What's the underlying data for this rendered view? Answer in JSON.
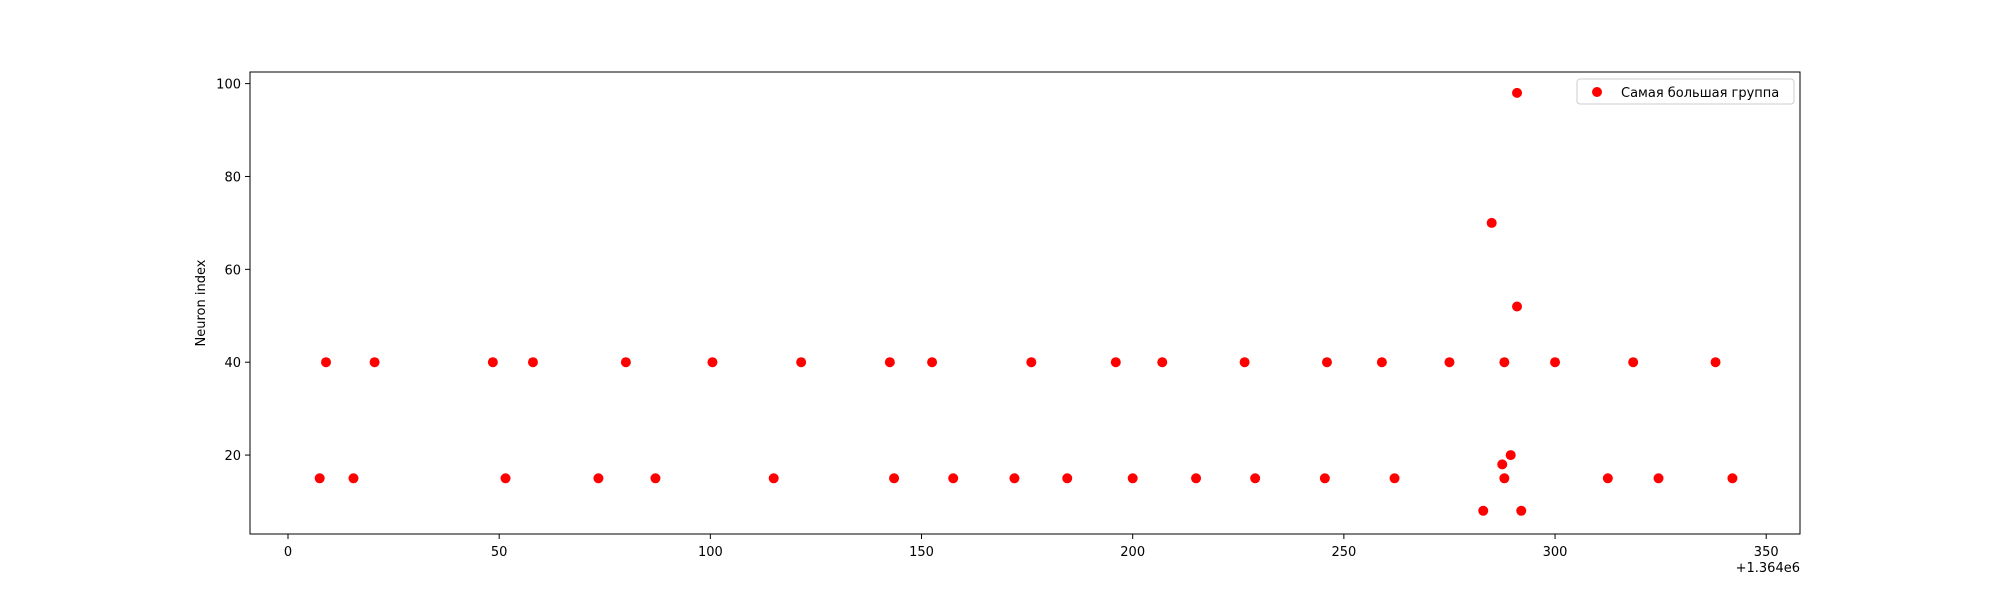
{
  "chart_data": {
    "type": "scatter",
    "title": "",
    "xlabel": "",
    "ylabel": "Neuron index",
    "x_offset_label": "+1.364e6",
    "xlim": [
      -9,
      358
    ],
    "ylim": [
      3,
      102.5
    ],
    "x_ticks": [
      0,
      50,
      100,
      150,
      200,
      250,
      300,
      350
    ],
    "y_ticks": [
      20,
      40,
      60,
      80,
      100
    ],
    "grid": false,
    "legend_position": "top-right",
    "series": [
      {
        "name": "Самая большая группа",
        "color": "#ff0000",
        "points": [
          {
            "x": 7.5,
            "y": 15
          },
          {
            "x": 9,
            "y": 40
          },
          {
            "x": 15.5,
            "y": 15
          },
          {
            "x": 20.5,
            "y": 40
          },
          {
            "x": 48.5,
            "y": 40
          },
          {
            "x": 51.5,
            "y": 15
          },
          {
            "x": 58,
            "y": 40
          },
          {
            "x": 73.5,
            "y": 15
          },
          {
            "x": 80,
            "y": 40
          },
          {
            "x": 87,
            "y": 15
          },
          {
            "x": 100.5,
            "y": 40
          },
          {
            "x": 115,
            "y": 15
          },
          {
            "x": 121.5,
            "y": 40
          },
          {
            "x": 142.5,
            "y": 40
          },
          {
            "x": 143.5,
            "y": 15
          },
          {
            "x": 152.5,
            "y": 40
          },
          {
            "x": 157.5,
            "y": 15
          },
          {
            "x": 172,
            "y": 15
          },
          {
            "x": 176,
            "y": 40
          },
          {
            "x": 184.5,
            "y": 15
          },
          {
            "x": 196,
            "y": 40
          },
          {
            "x": 200,
            "y": 15
          },
          {
            "x": 207,
            "y": 40
          },
          {
            "x": 215,
            "y": 15
          },
          {
            "x": 226.5,
            "y": 40
          },
          {
            "x": 229,
            "y": 15
          },
          {
            "x": 245.5,
            "y": 15
          },
          {
            "x": 246,
            "y": 40
          },
          {
            "x": 259,
            "y": 40
          },
          {
            "x": 262,
            "y": 15
          },
          {
            "x": 275,
            "y": 40
          },
          {
            "x": 283,
            "y": 8
          },
          {
            "x": 285,
            "y": 70
          },
          {
            "x": 287.5,
            "y": 18
          },
          {
            "x": 288,
            "y": 15
          },
          {
            "x": 288,
            "y": 40
          },
          {
            "x": 289.5,
            "y": 20
          },
          {
            "x": 291,
            "y": 52
          },
          {
            "x": 291,
            "y": 98
          },
          {
            "x": 292,
            "y": 8
          },
          {
            "x": 300,
            "y": 40
          },
          {
            "x": 312.5,
            "y": 15
          },
          {
            "x": 318.5,
            "y": 40
          },
          {
            "x": 324.5,
            "y": 15
          },
          {
            "x": 338,
            "y": 40
          },
          {
            "x": 342,
            "y": 15
          }
        ]
      }
    ]
  }
}
